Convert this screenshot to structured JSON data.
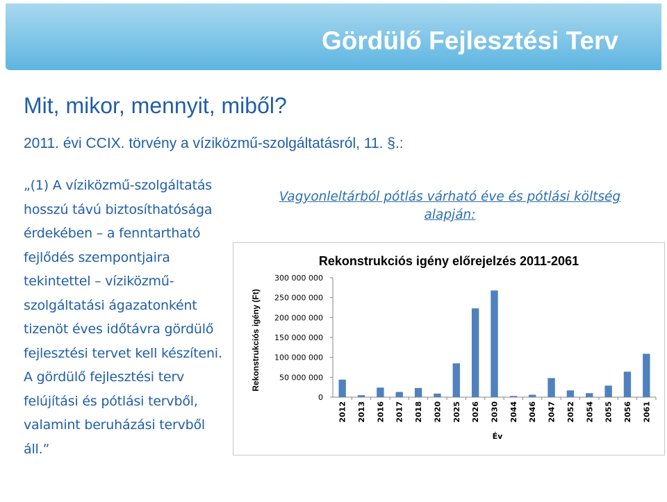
{
  "slide": {
    "title": "Gördülő Fejlesztési Terv",
    "subtitle": "Mit, mikor, mennyit, miből?",
    "law_reference": "2011. évi CCIX. törvény a víziközmű-szolgáltatásról, 11. §.:",
    "quote": "„(1) A víziközmű-szolgáltatás hosszú távú biztosíthatósága érdekében – a fenntartható fejlődés szempontjaira tekintettel – víziközmű-szolgáltatási ágazatonként tizenöt éves időtávra gördülő fejlesztési tervet kell készíteni. A gördülő fejlesztési terv felújítási és pótlási tervből, valamint beruházási tervből áll.”",
    "chart_caption": "Vagyonleltárból pótlás várható éve és pótlási költség alapján:"
  },
  "colors": {
    "header": "#5db5e1",
    "text": "#1f5ea8",
    "bar": "#4f81bd"
  },
  "chart_data": {
    "type": "bar",
    "title": "Rekonstrukciós igény előrejelzés 2011-2061",
    "xlabel": "Év",
    "ylabel": "Rekonstrukciós igény (Ft)",
    "ylim": [
      0,
      300000000
    ],
    "yticks": [
      "300 000 000",
      "250 000 000",
      "200 000 000",
      "150 000 000",
      "100 000 000",
      "50 000 000",
      "0"
    ],
    "categories": [
      "2012",
      "2013",
      "2016",
      "2017",
      "2018",
      "2020",
      "2025",
      "2026",
      "2030",
      "2044",
      "2046",
      "2047",
      "2052",
      "2054",
      "2055",
      "2056",
      "2061"
    ],
    "values": [
      44000000,
      5000000,
      24000000,
      13000000,
      23000000,
      9000000,
      85000000,
      223000000,
      268000000,
      3000000,
      6000000,
      48000000,
      17000000,
      10000000,
      29000000,
      64000000,
      109000000
    ],
    "grid": false,
    "legend": "none"
  }
}
